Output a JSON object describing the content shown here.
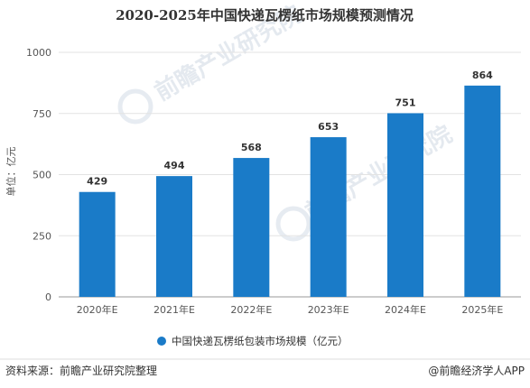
{
  "chart_data": {
    "type": "bar",
    "title": "2020-2025年中国快递瓦楞纸市场规模预测情况",
    "ylabel": "单位：亿元",
    "categories": [
      "2020年E",
      "2021年E",
      "2022年E",
      "2023年E",
      "2024年E",
      "2025年E"
    ],
    "series": [
      {
        "name": "中国快递瓦楞纸包装市场规模（亿元）",
        "values": [
          429,
          494,
          568,
          653,
          751,
          864
        ]
      }
    ],
    "ylim": [
      0,
      1000
    ],
    "yticks": [
      "0",
      "250",
      "500",
      "750",
      "1000"
    ],
    "grid": true,
    "legend_position": "bottom",
    "bar_color": "#1a7bc8"
  },
  "footer": {
    "source": "资料来源：前瞻产业研究院整理",
    "brand": "@前瞻经济学人APP"
  },
  "watermark": {
    "text": "前瞻产业研究院"
  }
}
